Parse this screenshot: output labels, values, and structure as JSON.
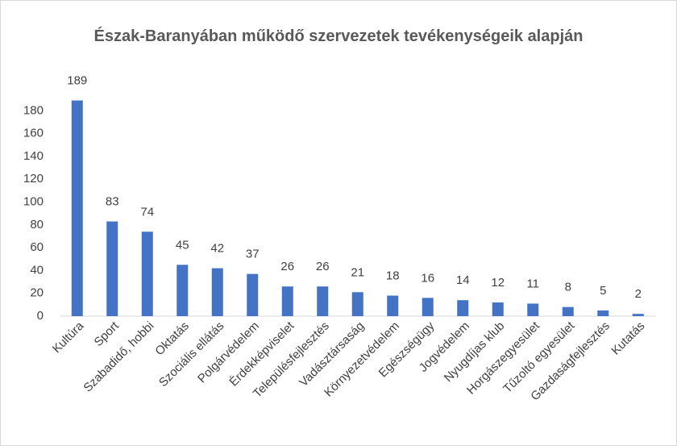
{
  "chart_data": {
    "type": "bar",
    "title": "Észak-Baranyában működő szervezetek tevékenységeik alapján",
    "categories": [
      "Kultúra",
      "Sport",
      "Szabadidő, hobbi",
      "Oktatás",
      "Szociális ellátás",
      "Polgárvédelem",
      "Érdekképviselet",
      "Településfejlesztés",
      "Vadásztársaság",
      "Környezetvédelem",
      "Egészségügy",
      "Jogvédelem",
      "Nyugdíjas klub",
      "Horgászegyesület",
      "Tűzoltó egyesület",
      "Gazdaságfejlesztés",
      "Kutatás"
    ],
    "values": [
      189,
      83,
      74,
      45,
      42,
      37,
      26,
      26,
      21,
      18,
      16,
      14,
      12,
      11,
      8,
      5,
      2
    ],
    "color": "#4472c4",
    "ylim": [
      0,
      200
    ],
    "yticks": [
      0,
      20,
      40,
      60,
      80,
      100,
      120,
      140,
      160,
      180
    ],
    "grid": false
  }
}
